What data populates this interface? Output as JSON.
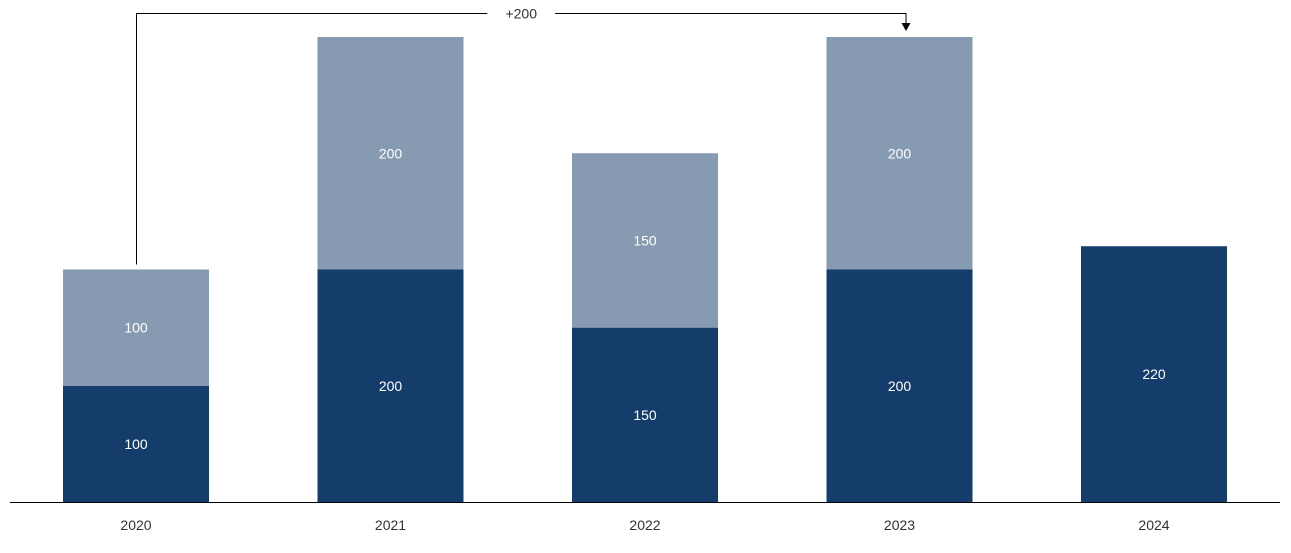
{
  "chart_data": {
    "type": "bar",
    "stacked": true,
    "categories": [
      "2020",
      "2021",
      "2022",
      "2023",
      "2024"
    ],
    "series": [
      {
        "values": [
          100,
          200,
          150,
          200,
          220
        ],
        "color": "#143d6b"
      },
      {
        "values": [
          100,
          200,
          150,
          200,
          null
        ],
        "color": "#869bb2"
      }
    ],
    "data_labels": [
      [
        "100",
        "200",
        "150",
        "200",
        "220"
      ],
      [
        "100",
        "200",
        "150",
        "200",
        ""
      ]
    ],
    "ylim": [
      0,
      400
    ],
    "grid": false,
    "legend": "none",
    "annotations": [
      {
        "type": "difference-arrow",
        "from": "2020",
        "to": "2023",
        "label": "+200"
      }
    ],
    "axis_color": "#000000"
  }
}
